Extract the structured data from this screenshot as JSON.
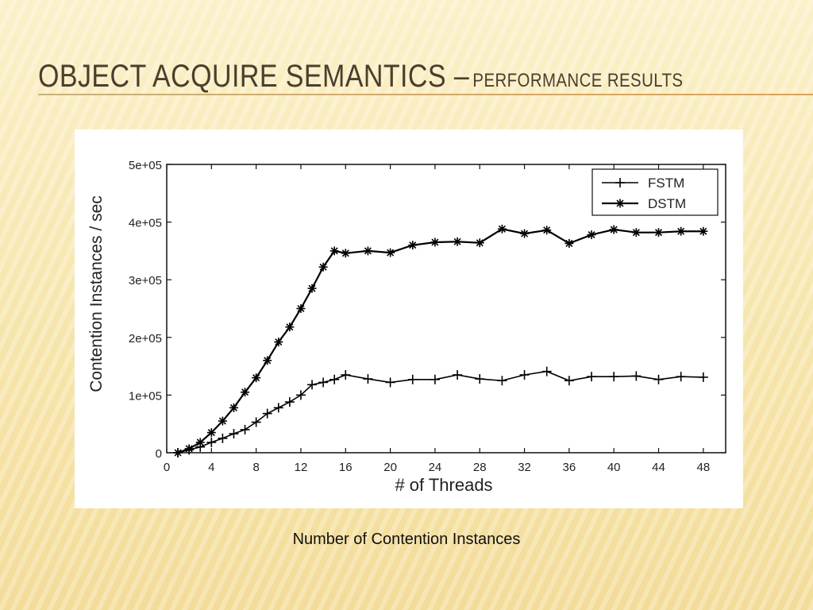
{
  "slide": {
    "title_main": "Object Acquire Semantics –",
    "title_sub": "Performance Results",
    "caption": "Number of Contention Instances"
  },
  "chart_data": {
    "type": "line",
    "xlabel": "# of Threads",
    "ylabel": "Contention Instances / sec",
    "xlim": [
      0,
      50
    ],
    "ylim": [
      0,
      500000
    ],
    "x_ticks": [
      0,
      4,
      8,
      12,
      16,
      20,
      24,
      28,
      32,
      36,
      40,
      44,
      48
    ],
    "y_ticks": [
      0,
      100000,
      200000,
      300000,
      400000,
      500000
    ],
    "y_tick_labels": [
      "0",
      "1e+05",
      "2e+05",
      "3e+05",
      "4e+05",
      "5e+05"
    ],
    "legend_position": "top-right",
    "grid": false,
    "series": [
      {
        "name": "FSTM",
        "marker": "plus",
        "x": [
          1,
          2,
          3,
          4,
          5,
          6,
          7,
          8,
          9,
          10,
          11,
          12,
          13,
          14,
          15,
          16,
          18,
          20,
          22,
          24,
          26,
          28,
          30,
          32,
          34,
          36,
          38,
          40,
          42,
          44,
          46,
          48
        ],
        "values": [
          0,
          5000,
          10000,
          18000,
          25000,
          33000,
          40000,
          53000,
          68000,
          78000,
          88000,
          100000,
          118000,
          122000,
          127000,
          135000,
          128000,
          122000,
          127000,
          127000,
          135000,
          128000,
          125000,
          135000,
          141000,
          125000,
          132000,
          132000,
          133000,
          127000,
          132000,
          131000
        ]
      },
      {
        "name": "DSTM",
        "marker": "star",
        "x": [
          1,
          2,
          3,
          4,
          5,
          6,
          7,
          8,
          9,
          10,
          11,
          12,
          13,
          14,
          15,
          16,
          18,
          20,
          22,
          24,
          26,
          28,
          30,
          32,
          34,
          36,
          38,
          40,
          42,
          44,
          46,
          48
        ],
        "values": [
          0,
          7000,
          18000,
          35000,
          55000,
          78000,
          105000,
          130000,
          160000,
          192000,
          218000,
          250000,
          285000,
          322000,
          350000,
          346000,
          350000,
          347000,
          360000,
          365000,
          366000,
          364000,
          388000,
          380000,
          386000,
          363000,
          378000,
          387000,
          382000,
          382000,
          384000,
          384000
        ]
      }
    ]
  }
}
